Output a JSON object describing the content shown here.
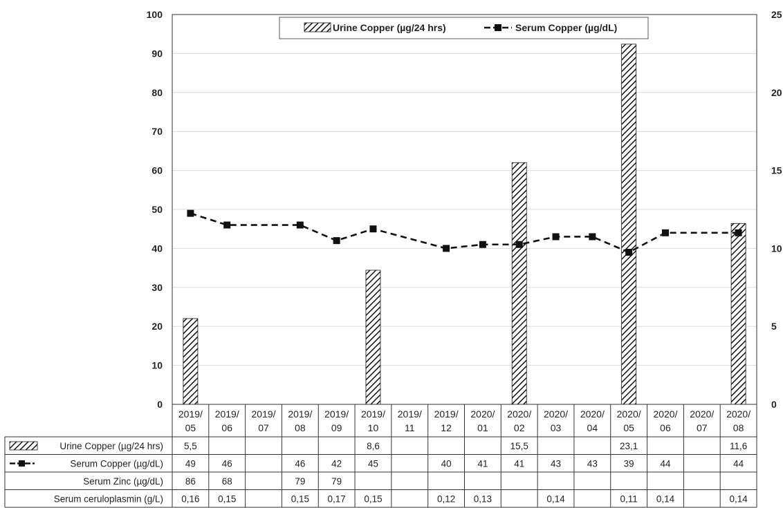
{
  "chart_data": {
    "type": "bar",
    "categories": [
      "2019/05",
      "2019/06",
      "2019/07",
      "2019/08",
      "2019/09",
      "2019/10",
      "2019/11",
      "2019/12",
      "2020/01",
      "2020/02",
      "2020/03",
      "2020/04",
      "2020/05",
      "2020/06",
      "2020/07",
      "2020/08"
    ],
    "category_lines": [
      [
        "2019/",
        "05"
      ],
      [
        "2019/",
        "06"
      ],
      [
        "2019/",
        "07"
      ],
      [
        "2019/",
        "08"
      ],
      [
        "2019/",
        "09"
      ],
      [
        "2019/",
        "10"
      ],
      [
        "2019/",
        "11"
      ],
      [
        "2019/",
        "12"
      ],
      [
        "2020/",
        "01"
      ],
      [
        "2020/",
        "02"
      ],
      [
        "2020/",
        "03"
      ],
      [
        "2020/",
        "04"
      ],
      [
        "2020/",
        "05"
      ],
      [
        "2020/",
        "06"
      ],
      [
        "2020/",
        "07"
      ],
      [
        "2020/",
        "08"
      ]
    ],
    "series": [
      {
        "name": "Urine Copper (µg/24 hrs)",
        "type": "bar",
        "axis": "right",
        "values": [
          5.5,
          null,
          null,
          null,
          null,
          8.6,
          null,
          null,
          null,
          15.5,
          null,
          null,
          23.1,
          null,
          null,
          11.6
        ]
      },
      {
        "name": "Serum Copper (µg/dL)",
        "type": "line",
        "axis": "left",
        "values": [
          49,
          46,
          null,
          46,
          42,
          45,
          null,
          40,
          41,
          41,
          43,
          43,
          39,
          44,
          null,
          44
        ]
      }
    ],
    "left_axis": {
      "min": 0,
      "max": 100,
      "ticks": [
        "0",
        "10",
        "20",
        "30",
        "40",
        "50",
        "60",
        "70",
        "80",
        "90",
        "100"
      ]
    },
    "right_axis": {
      "min": 0,
      "max": 25,
      "ticks": [
        "0",
        "5",
        "10",
        "15",
        "20",
        "25"
      ]
    },
    "grid": true,
    "legend_position": "top",
    "table": {
      "rows": [
        {
          "label": "Urine Copper (µg/24 hrs)",
          "marker": "hatch",
          "cells": [
            "5,5",
            "",
            "",
            "",
            "",
            "8,6",
            "",
            "",
            "",
            "15,5",
            "",
            "",
            "23,1",
            "",
            "",
            "11,6"
          ]
        },
        {
          "label": "Serum Copper (µg/dL)",
          "marker": "line",
          "cells": [
            "49",
            "46",
            "",
            "46",
            "42",
            "45",
            "",
            "40",
            "41",
            "41",
            "43",
            "43",
            "39",
            "44",
            "",
            "44"
          ]
        },
        {
          "label": "Serum Zinc (µg/dL)",
          "marker": "none",
          "cells": [
            "86",
            "68",
            "",
            "79",
            "79",
            "",
            "",
            "",
            "",
            "",
            "",
            "",
            "",
            "",
            "",
            ""
          ]
        },
        {
          "label": "Serum ceruloplasmin (g/L)",
          "marker": "none",
          "cells": [
            "0,16",
            "0,15",
            "",
            "0,15",
            "0,17",
            "0,15",
            "",
            "0,12",
            "0,13",
            "",
            "0,14",
            "",
            "0,11",
            "0,14",
            "",
            "0,14"
          ]
        }
      ]
    }
  },
  "colors": {
    "bar_fill": "#ffffff",
    "hatch": "#111111",
    "line": "#111111",
    "grid": "#d9d9d9",
    "border": "#333333"
  }
}
